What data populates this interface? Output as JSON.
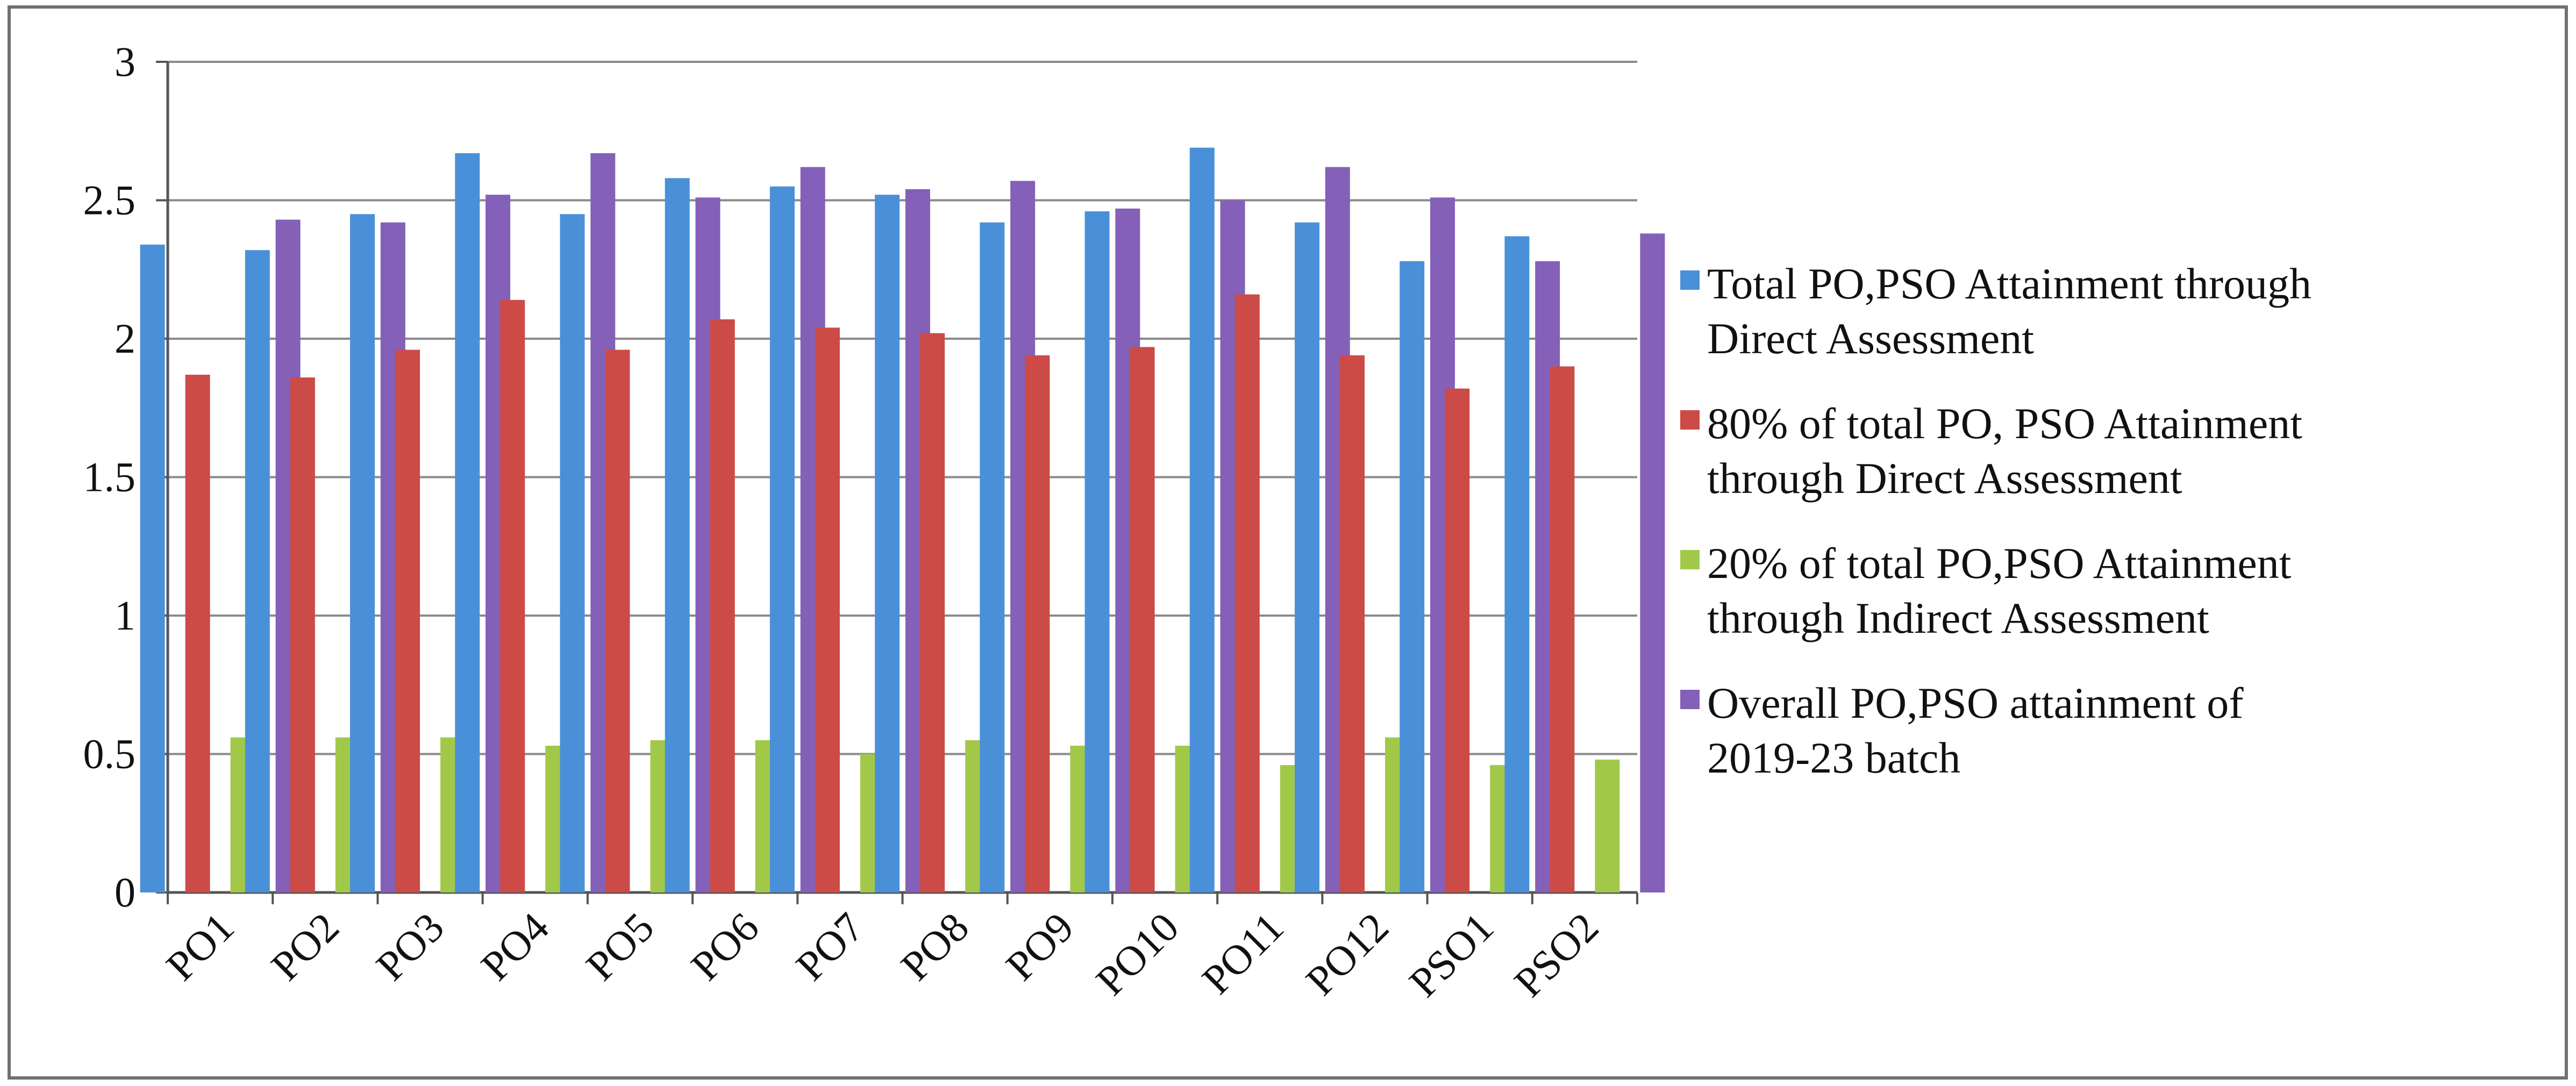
{
  "chart_data": {
    "type": "bar",
    "categories": [
      "PO1",
      "PO2",
      "PO3",
      "PO4",
      "PO5",
      "PO6",
      "PO7",
      "PO8",
      "PO9",
      "PO10",
      "PO11",
      "PO12",
      "PSO1",
      "PSO2"
    ],
    "series": [
      {
        "name": "Total PO,PSO Attainment through Direct Assessment",
        "legend_lines": [
          "Total PO,PSO Attainment through",
          "Direct Assessment"
        ],
        "color": "#4a90d9",
        "values": [
          2.34,
          2.32,
          2.45,
          2.67,
          2.45,
          2.58,
          2.55,
          2.52,
          2.42,
          2.46,
          2.69,
          2.42,
          2.28,
          2.37
        ]
      },
      {
        "name": "80% of total PO, PSO Attainment through Direct Assessment",
        "legend_lines": [
          "80% of total PO, PSO Attainment",
          "through Direct Assessment"
        ],
        "color": "#cc4b47",
        "values": [
          1.87,
          1.86,
          1.96,
          2.14,
          1.96,
          2.07,
          2.04,
          2.02,
          1.94,
          1.97,
          2.16,
          1.94,
          1.82,
          1.9
        ]
      },
      {
        "name": "20% of total PO,PSO Attainment through Indirect Assessment",
        "legend_lines": [
          "20% of total PO,PSO Attainment",
          "through Indirect Assessment"
        ],
        "color": "#a2c84a",
        "values": [
          0.56,
          0.56,
          0.56,
          0.53,
          0.55,
          0.55,
          0.5,
          0.55,
          0.53,
          0.53,
          0.46,
          0.56,
          0.46,
          0.48
        ]
      },
      {
        "name": "Overall PO,PSO attainment of 2019-23 batch",
        "legend_lines": [
          "Overall PO,PSO attainment of",
          "2019-23 batch"
        ],
        "color": "#8460b8",
        "values": [
          2.43,
          2.42,
          2.52,
          2.67,
          2.51,
          2.62,
          2.54,
          2.57,
          2.47,
          2.5,
          2.62,
          2.51,
          2.28,
          2.38
        ]
      }
    ],
    "yticks": [
      "0",
      "0.5",
      "1",
      "1.5",
      "2",
      "2.5",
      "3"
    ],
    "ylim": [
      0,
      3
    ],
    "grid": true,
    "legend_position": "right"
  }
}
